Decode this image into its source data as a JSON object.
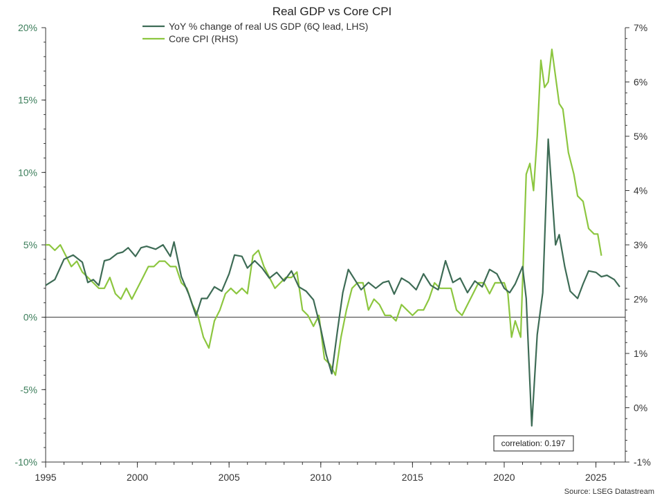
{
  "chart_data": {
    "type": "line",
    "title": "Real GDP vs Core CPI",
    "source": "Source: LSEG Datastream",
    "annotation": "correlation: 0.197",
    "legend_placement": "top-center",
    "grid": false,
    "x_axis": {
      "range": [
        1995,
        2026.6
      ],
      "ticks": [
        "1995",
        "2000",
        "2005",
        "2010",
        "2015",
        "2020",
        "2025"
      ],
      "tick_values": [
        1995,
        2000,
        2005,
        2010,
        2015,
        2020,
        2025
      ]
    },
    "y_left": {
      "range": [
        -10,
        20
      ],
      "ticks": [
        "-10%",
        "-5%",
        "0%",
        "5%",
        "10%",
        "15%",
        "20%"
      ],
      "tick_values": [
        -10,
        -5,
        0,
        5,
        10,
        15,
        20
      ]
    },
    "y_right": {
      "range": [
        -1,
        7
      ],
      "ticks": [
        "-1%",
        "0%",
        "1%",
        "2%",
        "3%",
        "4%",
        "5%",
        "6%",
        "7%"
      ],
      "tick_values": [
        -1,
        0,
        1,
        2,
        3,
        4,
        5,
        6,
        7
      ]
    },
    "colors": {
      "gdp": "#3d6b55",
      "cpi": "#8cc63f",
      "zero_line": "#333333"
    },
    "series": [
      {
        "name": "YoY % change of real US GDP (6Q lead, LHS)",
        "axis": "left",
        "x": [
          1995.0,
          1995.5,
          1996.0,
          1996.5,
          1997.0,
          1997.3,
          1997.6,
          1997.9,
          1998.2,
          1998.5,
          1998.9,
          1999.2,
          1999.5,
          1999.9,
          2000.2,
          2000.5,
          2001.0,
          2001.4,
          2001.8,
          2002.0,
          2002.4,
          2002.8,
          2003.2,
          2003.5,
          2003.8,
          2004.2,
          2004.6,
          2005.0,
          2005.3,
          2005.7,
          2006.0,
          2006.4,
          2006.8,
          2007.2,
          2007.6,
          2008.0,
          2008.4,
          2008.8,
          2009.2,
          2009.6,
          2010.0,
          2010.3,
          2010.6,
          2010.9,
          2011.2,
          2011.5,
          2011.9,
          2012.2,
          2012.6,
          2013.0,
          2013.4,
          2013.7,
          2014.0,
          2014.4,
          2014.8,
          2015.2,
          2015.6,
          2016.0,
          2016.4,
          2016.8,
          2017.2,
          2017.6,
          2018.0,
          2018.4,
          2018.8,
          2019.2,
          2019.6,
          2020.0,
          2020.3,
          2020.6,
          2021.0,
          2021.2,
          2021.5,
          2021.8,
          2022.1,
          2022.4,
          2022.8,
          2023.0,
          2023.3,
          2023.6,
          2024.0,
          2024.3,
          2024.6,
          2025.0,
          2025.3,
          2025.6,
          2026.0,
          2026.3
        ],
        "values": [
          2.2,
          2.6,
          4.0,
          4.3,
          3.8,
          2.4,
          2.6,
          2.2,
          3.9,
          4.0,
          4.4,
          4.5,
          4.8,
          4.2,
          4.8,
          4.9,
          4.7,
          5.0,
          4.2,
          5.2,
          2.8,
          1.6,
          0.1,
          1.3,
          1.3,
          2.1,
          1.8,
          3.0,
          4.3,
          4.2,
          3.4,
          3.9,
          3.4,
          2.7,
          3.1,
          2.5,
          3.2,
          2.1,
          1.8,
          1.2,
          -0.8,
          -2.6,
          -3.9,
          -1.0,
          1.7,
          3.3,
          2.5,
          1.9,
          2.4,
          2.0,
          2.4,
          2.5,
          1.6,
          2.7,
          2.4,
          1.9,
          3.0,
          2.2,
          1.9,
          3.9,
          2.4,
          2.7,
          1.7,
          2.5,
          2.1,
          3.3,
          3.0,
          2.0,
          1.7,
          2.3,
          3.5,
          1.3,
          -7.5,
          -1.2,
          1.7,
          12.3,
          5.0,
          5.7,
          3.5,
          1.8,
          1.3,
          2.3,
          3.2,
          3.1,
          2.8,
          2.9,
          2.6,
          2.1
        ]
      },
      {
        "name": "Core CPI (RHS)",
        "axis": "right",
        "x": [
          1995.0,
          1995.2,
          1995.5,
          1995.8,
          1996.1,
          1996.4,
          1996.7,
          1997.0,
          1997.3,
          1997.6,
          1997.9,
          1998.2,
          1998.5,
          1998.8,
          1999.1,
          1999.4,
          1999.7,
          2000.0,
          2000.3,
          2000.6,
          2000.9,
          2001.2,
          2001.5,
          2001.8,
          2002.1,
          2002.4,
          2002.7,
          2003.0,
          2003.3,
          2003.6,
          2003.9,
          2004.2,
          2004.5,
          2004.8,
          2005.1,
          2005.4,
          2005.7,
          2006.0,
          2006.3,
          2006.6,
          2006.9,
          2007.2,
          2007.5,
          2007.8,
          2008.1,
          2008.4,
          2008.7,
          2009.0,
          2009.3,
          2009.6,
          2009.9,
          2010.2,
          2010.5,
          2010.8,
          2011.1,
          2011.4,
          2011.7,
          2012.0,
          2012.3,
          2012.6,
          2012.9,
          2013.2,
          2013.5,
          2013.8,
          2014.1,
          2014.4,
          2014.7,
          2015.0,
          2015.3,
          2015.6,
          2015.9,
          2016.2,
          2016.5,
          2016.8,
          2017.1,
          2017.4,
          2017.7,
          2018.0,
          2018.3,
          2018.6,
          2018.9,
          2019.2,
          2019.5,
          2019.8,
          2020.0,
          2020.2,
          2020.4,
          2020.6,
          2020.9,
          2021.2,
          2021.4,
          2021.6,
          2021.8,
          2022.0,
          2022.2,
          2022.4,
          2022.6,
          2022.8,
          2023.0,
          2023.2,
          2023.5,
          2023.8,
          2024.0,
          2024.3,
          2024.6,
          2024.9,
          2025.1,
          2025.3
        ],
        "values": [
          3.0,
          3.0,
          2.9,
          3.0,
          2.8,
          2.6,
          2.7,
          2.5,
          2.4,
          2.3,
          2.2,
          2.2,
          2.4,
          2.1,
          2.0,
          2.2,
          2.0,
          2.2,
          2.4,
          2.6,
          2.6,
          2.7,
          2.7,
          2.6,
          2.6,
          2.3,
          2.2,
          1.9,
          1.7,
          1.3,
          1.1,
          1.6,
          1.8,
          2.1,
          2.2,
          2.1,
          2.2,
          2.1,
          2.8,
          2.9,
          2.6,
          2.4,
          2.2,
          2.3,
          2.4,
          2.4,
          2.5,
          1.8,
          1.7,
          1.5,
          1.7,
          0.9,
          0.8,
          0.6,
          1.3,
          1.8,
          2.2,
          2.3,
          2.3,
          1.8,
          2.0,
          1.9,
          1.7,
          1.7,
          1.6,
          1.9,
          1.8,
          1.7,
          1.8,
          1.8,
          2.0,
          2.3,
          2.2,
          2.2,
          2.2,
          1.8,
          1.7,
          1.9,
          2.1,
          2.3,
          2.3,
          2.1,
          2.3,
          2.3,
          2.3,
          2.1,
          1.3,
          1.6,
          1.3,
          4.3,
          4.5,
          4.0,
          5.0,
          6.4,
          5.9,
          6.0,
          6.6,
          6.1,
          5.6,
          5.5,
          4.7,
          4.3,
          3.9,
          3.8,
          3.3,
          3.2,
          3.2,
          2.8
        ]
      }
    ]
  }
}
